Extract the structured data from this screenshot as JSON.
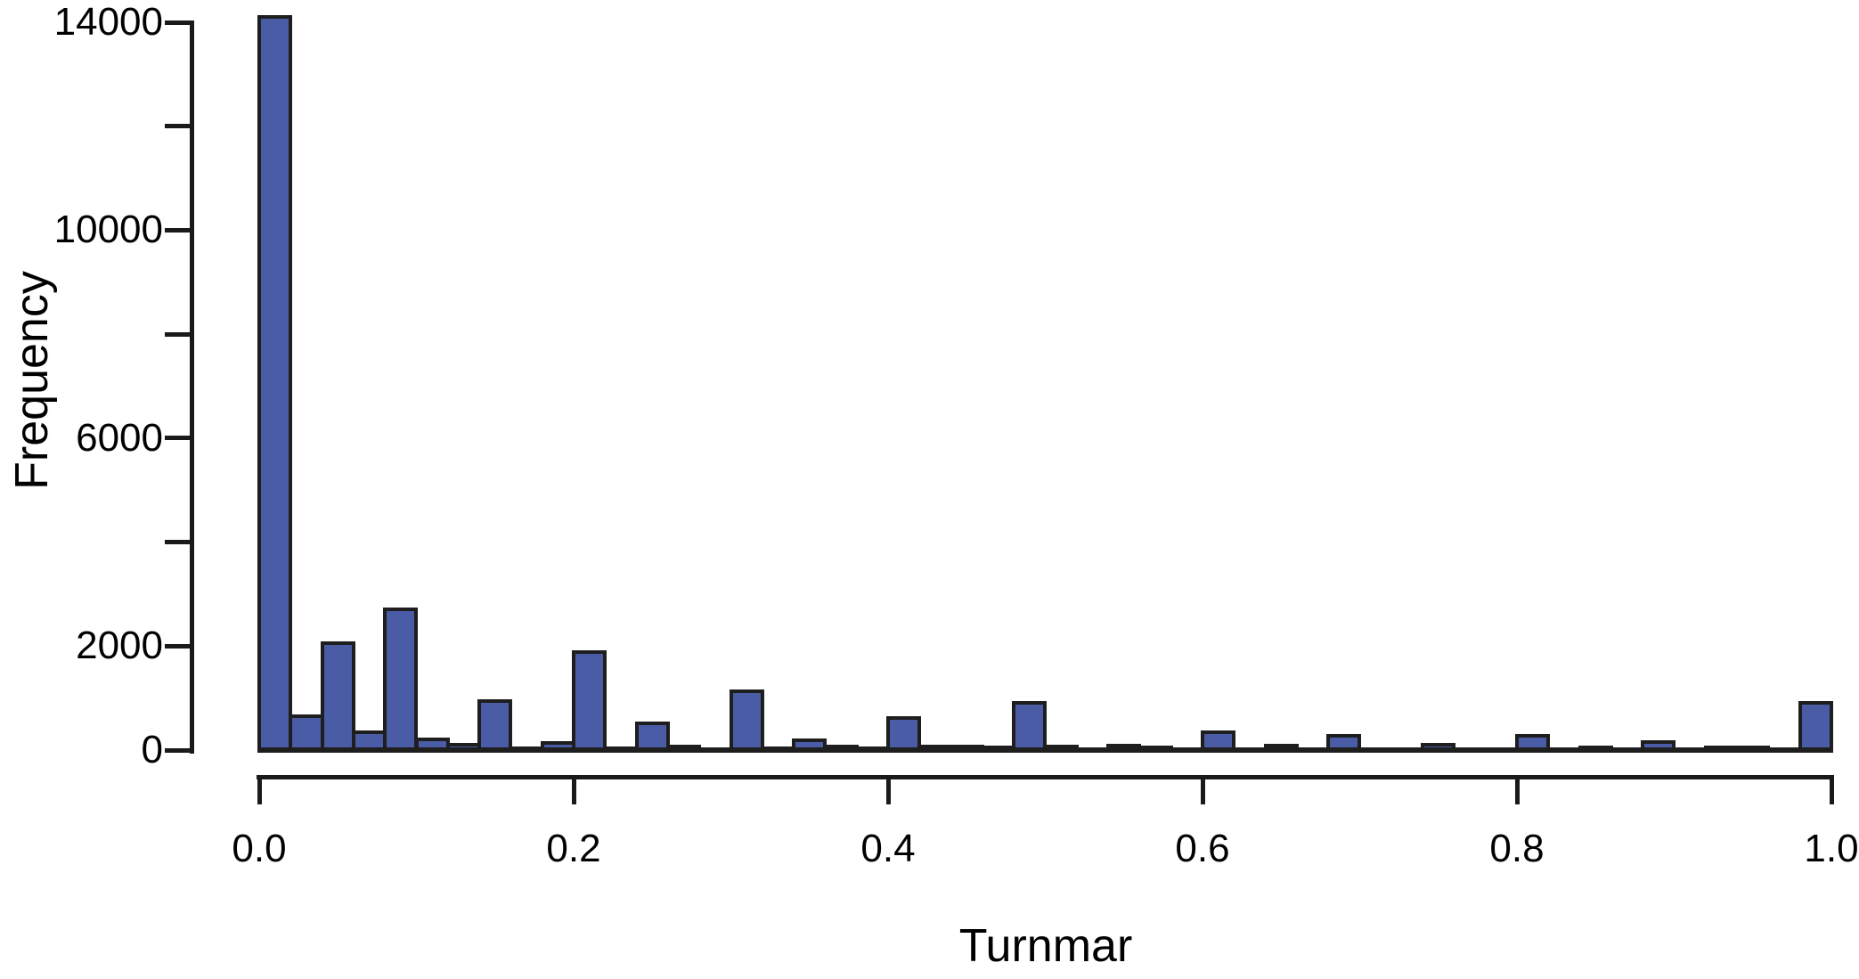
{
  "page": {
    "background": "#ffffff"
  },
  "chart_data": {
    "type": "bar",
    "subtype": "histogram",
    "title": "",
    "xlabel": "Turnmar",
    "ylabel": "Frequency",
    "grid": false,
    "legend": "none",
    "xlim": [
      0.0,
      1.0
    ],
    "ylim": [
      0,
      14000
    ],
    "bin_start": 0.0,
    "bin_width": 0.02,
    "values": [
      14100,
      650,
      2050,
      350,
      2700,
      210,
      100,
      950,
      30,
      140,
      1880,
      30,
      520,
      60,
      20,
      1130,
      30,
      180,
      60,
      30,
      620,
      60,
      60,
      50,
      900,
      60,
      20,
      80,
      50,
      20,
      340,
      20,
      80,
      20,
      280,
      20,
      20,
      100,
      20,
      20,
      270,
      10,
      50,
      20,
      150,
      10,
      50,
      50,
      20,
      900
    ],
    "x_axis": {
      "ticks": [
        0.0,
        0.2,
        0.4,
        0.6,
        0.8,
        1.0
      ],
      "tick_decimals": 1
    },
    "y_axis": {
      "ticks": [
        0,
        2000,
        4000,
        6000,
        8000,
        10000,
        12000,
        14000
      ],
      "labeled_ticks": [
        0,
        2000,
        6000,
        10000,
        14000
      ]
    },
    "colors": {
      "bar_fill": "#4A5CA5",
      "bar_border": "#1E1E1E",
      "axis": "#1A1A1A",
      "text": "#000000"
    }
  }
}
